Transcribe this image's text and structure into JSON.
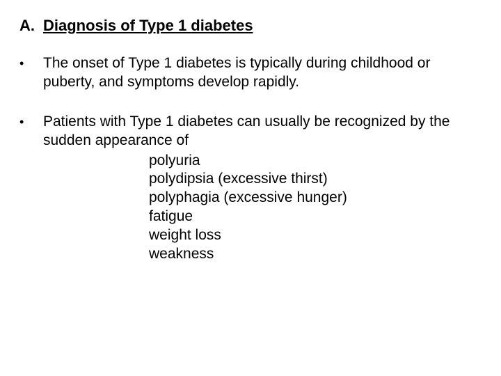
{
  "heading": {
    "label": "A.",
    "text": "Diagnosis of Type 1 diabetes"
  },
  "bullets": {
    "b1": "The onset of Type 1 diabetes is typically during childhood or puberty, and symptoms develop rapidly.",
    "b2_intro": "Patients with Type 1 diabetes can usually be recognized by the sudden appearance of",
    "symptoms": {
      "s1": "polyuria",
      "s2": "polydipsia (excessive thirst)",
      "s3": "polyphagia (excessive hunger)",
      "s4": "fatigue",
      "s5": "weight loss",
      "s6": "weakness"
    }
  },
  "style": {
    "font_family": "Arial",
    "heading_fontsize": 22,
    "body_fontsize": 21,
    "text_color": "#000000",
    "background_color": "#ffffff"
  }
}
